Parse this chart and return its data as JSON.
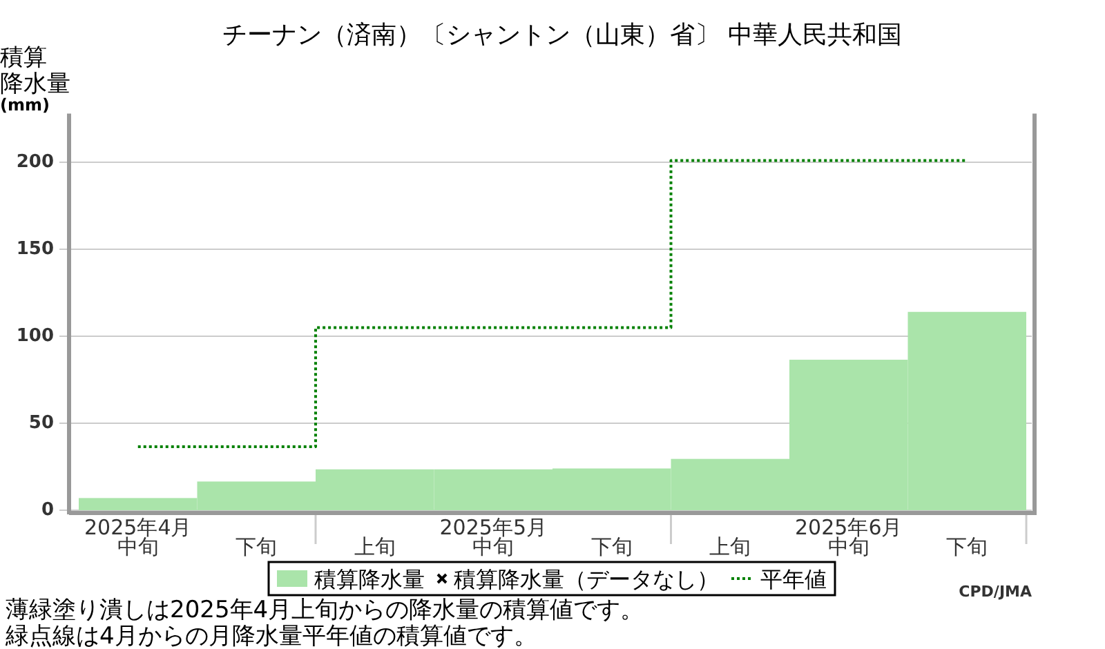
{
  "chart_data": {
    "type": "bar",
    "title": "チーナン（済南）〔シャントン（山東）省〕 中華人民共和国",
    "ylabel": "積算降水量(mm)",
    "categories": [
      "2025年4月中旬",
      "下旬",
      "上旬",
      "2025年5月中旬",
      "下旬",
      "上旬",
      "2025年6月中旬",
      "下旬"
    ],
    "series": [
      {
        "name": "積算降水量",
        "color": "#aae4aa",
        "values": [
          7,
          16.5,
          23.5,
          23.5,
          24,
          29.5,
          86.5,
          114
        ]
      },
      {
        "name": "積算降水量（データなし）",
        "type": "scatter",
        "marker": "cross",
        "color": "#000000",
        "values": [
          null,
          null,
          null,
          null,
          null,
          null,
          null,
          null
        ]
      },
      {
        "name": "平年値",
        "type": "step",
        "color": "#008000",
        "line_style": "dotted",
        "values": [
          36.5,
          36.5,
          105,
          105,
          105,
          201,
          201,
          201
        ]
      }
    ],
    "ylim": [
      0,
      228
    ],
    "yticks": [
      0,
      50,
      100,
      150,
      200
    ],
    "grid": "y",
    "legend": "bottom",
    "annotations": [
      "CPD/JMA",
      "薄緑塗り潰しは2025年4月上旬からの降水量の積算値です。",
      "緑点線は4月からの月降水量平年値の積算値です。"
    ]
  }
}
